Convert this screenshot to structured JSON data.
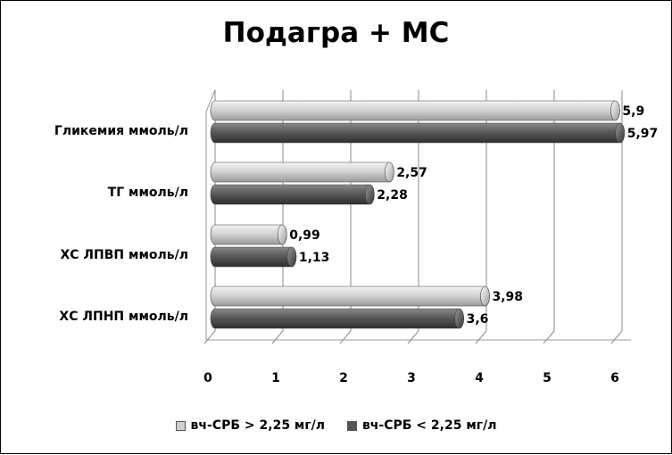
{
  "chart_data": {
    "type": "bar",
    "orientation": "horizontal",
    "title": "Подагра + МС",
    "categories": [
      "Гликемия ммоль/л",
      "ТГ ммоль/л",
      "ХС ЛПВП ммоль/л",
      "ХС ЛПНП ммоль/л"
    ],
    "series": [
      {
        "name": "вч-СРБ > 2,25 мг/л",
        "values": [
          5.9,
          2.57,
          0.99,
          3.98
        ],
        "labels": [
          "5,9",
          "2,57",
          "0,99",
          "3,98"
        ],
        "color": "#d0d0d0"
      },
      {
        "name": "вч-СРБ < 2,25 мг/л",
        "values": [
          5.97,
          2.28,
          1.13,
          3.6
        ],
        "labels": [
          "5,97",
          "2,28",
          "1,13",
          "3,6"
        ],
        "color": "#555555"
      }
    ],
    "xlim": [
      0,
      6
    ],
    "xticks": [
      "0",
      "1",
      "2",
      "3",
      "4",
      "5",
      "6"
    ],
    "grid": true,
    "legend_position": "bottom"
  }
}
